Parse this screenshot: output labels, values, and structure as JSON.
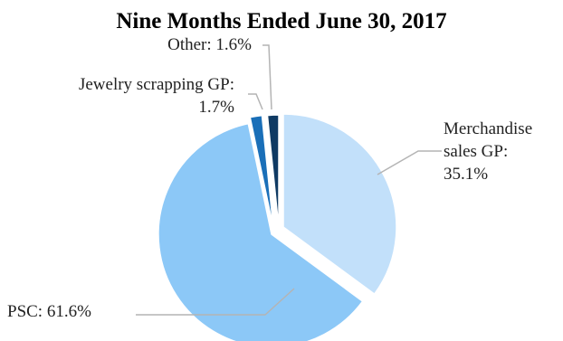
{
  "chart_data": {
    "type": "pie",
    "title": "Nine Months Ended June 30, 2017",
    "slices": [
      {
        "name": "Merchandise sales GP",
        "value": 35.1,
        "color": "#c2e0fa",
        "label_lines": [
          "Merchandise",
          "sales GP:",
          "35.1%"
        ]
      },
      {
        "name": "PSC",
        "value": 61.6,
        "color": "#8cc8f7",
        "label_lines": [
          "PSC: 61.6%"
        ]
      },
      {
        "name": "Jewelry scrapping GP",
        "value": 1.7,
        "color": "#1a6fb8",
        "label_lines": [
          "Jewelry scrapping GP:",
          "1.7%"
        ]
      },
      {
        "name": "Other",
        "value": 1.6,
        "color": "#0f3a63",
        "label_lines": [
          "Other: 1.6%"
        ]
      }
    ],
    "start_angle_deg": 0,
    "direction": "clockwise",
    "legend": "none"
  }
}
